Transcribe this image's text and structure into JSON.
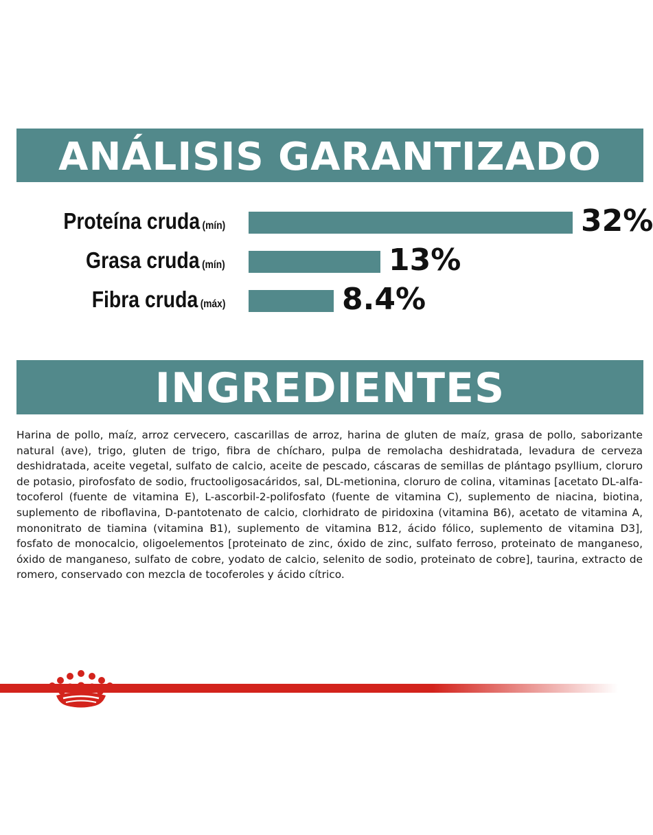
{
  "analysis": {
    "title": "ANÁLISIS GARANTIZADO",
    "items": [
      {
        "label": "Proteína cruda",
        "qualifier": "(mín)",
        "value_text": "32%",
        "value": 32
      },
      {
        "label": "Grasa cruda",
        "qualifier": "(mín)",
        "value_text": "13%",
        "value": 13
      },
      {
        "label": "Fibra cruda",
        "qualifier": "(máx)",
        "value_text": "8.4%",
        "value": 8.4
      }
    ]
  },
  "ingredients": {
    "title": "INGREDIENTES",
    "text": "Harina de pollo, maíz, arroz cervecero, cascarillas de arroz, harina de gluten de maíz, grasa de pollo, saborizante natural (ave), trigo, gluten de trigo, fibra de chícharo, pulpa de remolacha deshidratada, levadura de cerveza deshidratada, aceite vegetal, sulfato de calcio, aceite de pescado, cáscaras de semillas de plántago psyllium, cloruro de potasio, pirofosfato de sodio, fructooligosacáridos, sal, DL-metionina, cloruro de colina, vitaminas [acetato DL-alfa-tocoferol (fuente de vitamina E), L-ascorbil-2-polifosfato (fuente de vitamina C), suplemento de niacina, biotina, suplemento de riboflavina, D-pantotenato de calcio, clorhidrato de piridoxina (vitamina B6), acetato de vitamina A, mononitrato de tiamina (vitamina B1), suplemento de vitamina B12, ácido fólico, suplemento de vitamina D3], fosfato de monocalcio, oligoelementos [proteinato de zinc, óxido de zinc, sulfato ferroso, proteinato de manganeso, óxido de manganeso, sulfato de cobre, yodato de calcio, selenito de sodio, proteinato de cobre], taurina, extracto de romero, conservado con mezcla de tocoferoles y ácido cítrico."
  },
  "colors": {
    "accent": "#52898b",
    "brand_red": "#d3231c"
  },
  "footer": {
    "logo_icon": "crown-icon"
  }
}
